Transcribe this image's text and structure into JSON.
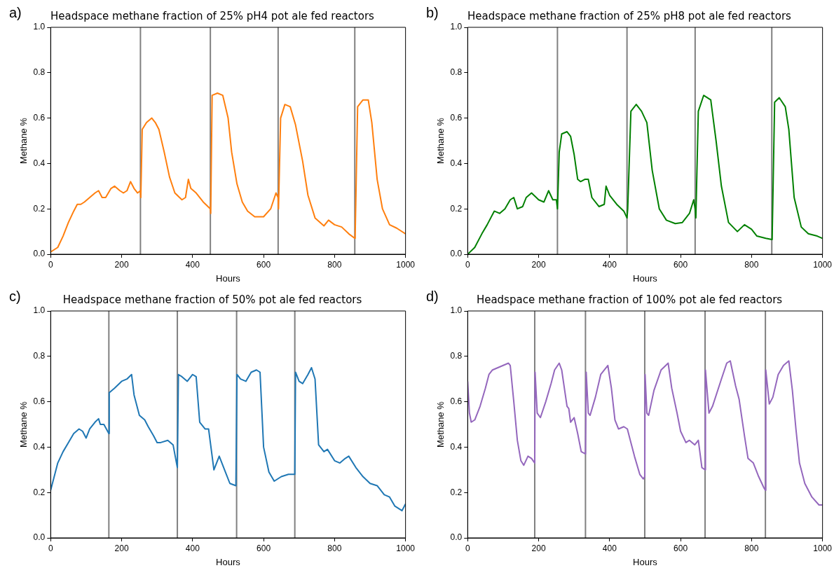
{
  "chart_data": [
    {
      "type": "line",
      "title": "Headspace methane fraction of 25% pH4 pot ale fed reactors",
      "xlabel": "Hours",
      "ylabel": "Methane %",
      "annotations": [
        "a)"
      ],
      "legend": false,
      "grid": false,
      "xlim": [
        0,
        1000
      ],
      "xticks": [
        0,
        200,
        400,
        600,
        800,
        1000
      ],
      "ylim": [
        0,
        1
      ],
      "yticks": [
        {
          "value": 0,
          "label": "0.0"
        },
        {
          "value": 0.2,
          "label": "0.2"
        },
        {
          "value": 0.4,
          "label": "0.4"
        },
        {
          "value": 0.6,
          "label": "0.6"
        },
        {
          "value": 0.8,
          "label": "0.8"
        },
        {
          "value": 1,
          "label": "1.0"
        }
      ],
      "ref_lines": [
        {
          "axis": "x",
          "value": 253,
          "color": "#808080"
        },
        {
          "axis": "x",
          "value": 450,
          "color": "#808080"
        },
        {
          "axis": "x",
          "value": 641,
          "color": "#808080"
        },
        {
          "axis": "x",
          "value": 857,
          "color": "#808080"
        }
      ],
      "series": [
        {
          "color": "#ff7f0e",
          "x": [
            0,
            20,
            35,
            50,
            65,
            75,
            85,
            95,
            110,
            125,
            135,
            145,
            155,
            170,
            180,
            195,
            205,
            215,
            225,
            235,
            245,
            253,
            254,
            258,
            270,
            285,
            295,
            305,
            320,
            335,
            350,
            370,
            380,
            388,
            395,
            410,
            430,
            450,
            451,
            455,
            470,
            485,
            500,
            510,
            525,
            540,
            555,
            575,
            600,
            620,
            635,
            641,
            642,
            648,
            660,
            675,
            690,
            710,
            725,
            745,
            770,
            783,
            800,
            820,
            840,
            857,
            858,
            865,
            880,
            895,
            905,
            920,
            935,
            955,
            975,
            1000
          ],
          "values": [
            0.01,
            0.03,
            0.08,
            0.14,
            0.19,
            0.22,
            0.22,
            0.23,
            0.25,
            0.27,
            0.28,
            0.25,
            0.25,
            0.29,
            0.3,
            0.28,
            0.27,
            0.28,
            0.32,
            0.29,
            0.27,
            0.28,
            0.25,
            0.55,
            0.58,
            0.6,
            0.58,
            0.55,
            0.45,
            0.34,
            0.27,
            0.24,
            0.25,
            0.33,
            0.29,
            0.27,
            0.23,
            0.2,
            0.18,
            0.7,
            0.71,
            0.7,
            0.6,
            0.45,
            0.31,
            0.23,
            0.19,
            0.165,
            0.165,
            0.2,
            0.27,
            0.25,
            0.2,
            0.6,
            0.66,
            0.65,
            0.57,
            0.41,
            0.26,
            0.16,
            0.125,
            0.15,
            0.13,
            0.12,
            0.09,
            0.07,
            0.08,
            0.65,
            0.68,
            0.68,
            0.58,
            0.33,
            0.2,
            0.13,
            0.115,
            0.09
          ]
        }
      ]
    },
    {
      "type": "line",
      "title": "Headspace methane fraction of 25% pH8 pot ale fed reactors",
      "xlabel": "Hours",
      "ylabel": "Methane %",
      "annotations": [
        "b)"
      ],
      "legend": false,
      "grid": false,
      "xlim": [
        0,
        1000
      ],
      "xticks": [
        0,
        200,
        400,
        600,
        800,
        1000
      ],
      "ylim": [
        0,
        1
      ],
      "yticks": [
        {
          "value": 0,
          "label": "0.0"
        },
        {
          "value": 0.2,
          "label": "0.2"
        },
        {
          "value": 0.4,
          "label": "0.4"
        },
        {
          "value": 0.6,
          "label": "0.6"
        },
        {
          "value": 0.8,
          "label": "0.8"
        },
        {
          "value": 1,
          "label": "1.0"
        }
      ],
      "ref_lines": [
        {
          "axis": "x",
          "value": 253,
          "color": "#808080"
        },
        {
          "axis": "x",
          "value": 449,
          "color": "#808080"
        },
        {
          "axis": "x",
          "value": 641,
          "color": "#808080"
        },
        {
          "axis": "x",
          "value": 857,
          "color": "#808080"
        }
      ],
      "series": [
        {
          "color": "#008000",
          "x": [
            0,
            20,
            40,
            55,
            75,
            90,
            105,
            120,
            130,
            140,
            155,
            165,
            180,
            200,
            215,
            228,
            240,
            250,
            253,
            258,
            265,
            280,
            290,
            300,
            310,
            318,
            330,
            340,
            350,
            370,
            385,
            390,
            400,
            420,
            440,
            449,
            451,
            460,
            475,
            490,
            505,
            520,
            540,
            560,
            585,
            605,
            625,
            637,
            641,
            643,
            650,
            665,
            685,
            700,
            715,
            735,
            760,
            780,
            800,
            815,
            840,
            857,
            858,
            865,
            878,
            895,
            905,
            920,
            940,
            960,
            985,
            1000
          ],
          "values": [
            0,
            0.03,
            0.09,
            0.13,
            0.19,
            0.18,
            0.2,
            0.24,
            0.25,
            0.2,
            0.21,
            0.25,
            0.27,
            0.24,
            0.23,
            0.28,
            0.24,
            0.24,
            0.2,
            0.45,
            0.53,
            0.54,
            0.52,
            0.44,
            0.33,
            0.32,
            0.33,
            0.33,
            0.25,
            0.21,
            0.22,
            0.3,
            0.26,
            0.22,
            0.19,
            0.16,
            0.2,
            0.63,
            0.66,
            0.63,
            0.58,
            0.37,
            0.2,
            0.15,
            0.135,
            0.14,
            0.18,
            0.24,
            0.2,
            0.16,
            0.63,
            0.7,
            0.68,
            0.5,
            0.3,
            0.14,
            0.1,
            0.13,
            0.11,
            0.08,
            0.07,
            0.065,
            0.07,
            0.67,
            0.69,
            0.65,
            0.55,
            0.25,
            0.12,
            0.09,
            0.08,
            0.07
          ]
        }
      ]
    },
    {
      "type": "line",
      "title": "Headspace methane fraction of 50% pot ale fed reactors",
      "xlabel": "Hours",
      "ylabel": "Methane %",
      "annotations": [
        "c)"
      ],
      "legend": false,
      "grid": false,
      "xlim": [
        0,
        1000
      ],
      "xticks": [
        0,
        200,
        400,
        600,
        800,
        1000
      ],
      "ylim": [
        0,
        1
      ],
      "yticks": [
        {
          "value": 0,
          "label": "0.0"
        },
        {
          "value": 0.2,
          "label": "0.2"
        },
        {
          "value": 0.4,
          "label": "0.4"
        },
        {
          "value": 0.6,
          "label": "0.6"
        },
        {
          "value": 0.8,
          "label": "0.8"
        },
        {
          "value": 1,
          "label": "1.0"
        }
      ],
      "ref_lines": [
        {
          "axis": "x",
          "value": 164,
          "color": "#808080"
        },
        {
          "axis": "x",
          "value": 357,
          "color": "#808080"
        },
        {
          "axis": "x",
          "value": 524,
          "color": "#808080"
        },
        {
          "axis": "x",
          "value": 688,
          "color": "#808080"
        }
      ],
      "series": [
        {
          "color": "#1f77b4",
          "x": [
            0,
            10,
            20,
            35,
            50,
            65,
            80,
            90,
            100,
            110,
            125,
            135,
            140,
            150,
            164,
            165,
            180,
            200,
            215,
            228,
            235,
            250,
            265,
            275,
            290,
            300,
            310,
            330,
            345,
            357,
            360,
            370,
            385,
            400,
            410,
            420,
            435,
            445,
            460,
            475,
            490,
            505,
            522,
            525,
            535,
            550,
            565,
            580,
            590,
            600,
            615,
            630,
            650,
            670,
            688,
            690,
            700,
            710,
            725,
            735,
            745,
            755,
            770,
            780,
            800,
            815,
            830,
            840,
            860,
            880,
            900,
            920,
            940,
            955,
            970,
            990,
            1000
          ],
          "values": [
            0.21,
            0.27,
            0.33,
            0.38,
            0.42,
            0.46,
            0.48,
            0.47,
            0.44,
            0.48,
            0.51,
            0.525,
            0.5,
            0.5,
            0.46,
            0.64,
            0.66,
            0.69,
            0.7,
            0.72,
            0.63,
            0.54,
            0.52,
            0.49,
            0.45,
            0.42,
            0.42,
            0.43,
            0.41,
            0.31,
            0.72,
            0.71,
            0.69,
            0.72,
            0.71,
            0.51,
            0.48,
            0.48,
            0.3,
            0.36,
            0.3,
            0.24,
            0.23,
            0.72,
            0.7,
            0.69,
            0.73,
            0.74,
            0.73,
            0.4,
            0.29,
            0.25,
            0.27,
            0.28,
            0.28,
            0.73,
            0.69,
            0.68,
            0.72,
            0.75,
            0.7,
            0.41,
            0.38,
            0.39,
            0.34,
            0.33,
            0.35,
            0.36,
            0.31,
            0.27,
            0.24,
            0.23,
            0.19,
            0.18,
            0.14,
            0.12,
            0.15
          ]
        }
      ]
    },
    {
      "type": "line",
      "title": "Headspace methane fraction of 100% pot ale fed reactors",
      "xlabel": "Hours",
      "ylabel": "Methane %",
      "annotations": [
        "d)"
      ],
      "legend": false,
      "grid": false,
      "xlim": [
        0,
        1000
      ],
      "xticks": [
        0,
        200,
        400,
        600,
        800,
        1000
      ],
      "ylim": [
        0,
        1
      ],
      "yticks": [
        {
          "value": 0,
          "label": "0.0"
        },
        {
          "value": 0.2,
          "label": "0.2"
        },
        {
          "value": 0.4,
          "label": "0.4"
        },
        {
          "value": 0.6,
          "label": "0.6"
        },
        {
          "value": 0.8,
          "label": "0.8"
        },
        {
          "value": 1,
          "label": "1.0"
        }
      ],
      "ref_lines": [
        {
          "axis": "x",
          "value": 189,
          "color": "#808080"
        },
        {
          "axis": "x",
          "value": 332,
          "color": "#808080"
        },
        {
          "axis": "x",
          "value": 499,
          "color": "#808080"
        },
        {
          "axis": "x",
          "value": 669,
          "color": "#808080"
        },
        {
          "axis": "x",
          "value": 839,
          "color": "#808080"
        }
      ],
      "series": [
        {
          "color": "#9467bd",
          "x": [
            0,
            5,
            10,
            20,
            35,
            50,
            60,
            70,
            85,
            100,
            115,
            120,
            130,
            140,
            150,
            158,
            170,
            180,
            189,
            190,
            196,
            205,
            220,
            235,
            245,
            258,
            265,
            280,
            285,
            290,
            300,
            310,
            320,
            332,
            334,
            340,
            345,
            360,
            375,
            395,
            405,
            415,
            425,
            440,
            450,
            460,
            470,
            485,
            495,
            499,
            500,
            505,
            510,
            525,
            545,
            565,
            575,
            590,
            600,
            615,
            625,
            640,
            650,
            660,
            669,
            670,
            680,
            690,
            715,
            730,
            740,
            755,
            765,
            780,
            790,
            805,
            820,
            835,
            839,
            840,
            850,
            860,
            875,
            890,
            905,
            915,
            925,
            935,
            950,
            970,
            990,
            1000
          ],
          "values": [
            0.69,
            0.55,
            0.51,
            0.52,
            0.58,
            0.66,
            0.72,
            0.74,
            0.75,
            0.76,
            0.77,
            0.76,
            0.6,
            0.43,
            0.34,
            0.32,
            0.36,
            0.35,
            0.33,
            0.73,
            0.55,
            0.53,
            0.6,
            0.68,
            0.74,
            0.77,
            0.74,
            0.58,
            0.57,
            0.51,
            0.53,
            0.46,
            0.38,
            0.37,
            0.73,
            0.55,
            0.54,
            0.62,
            0.72,
            0.76,
            0.66,
            0.52,
            0.48,
            0.49,
            0.48,
            0.42,
            0.36,
            0.28,
            0.26,
            0.27,
            0.72,
            0.55,
            0.54,
            0.65,
            0.74,
            0.77,
            0.66,
            0.55,
            0.47,
            0.42,
            0.43,
            0.41,
            0.43,
            0.31,
            0.3,
            0.74,
            0.55,
            0.58,
            0.7,
            0.77,
            0.78,
            0.67,
            0.61,
            0.45,
            0.35,
            0.33,
            0.27,
            0.22,
            0.21,
            0.74,
            0.59,
            0.62,
            0.72,
            0.76,
            0.78,
            0.65,
            0.48,
            0.33,
            0.24,
            0.18,
            0.145,
            0.145
          ]
        }
      ]
    }
  ]
}
